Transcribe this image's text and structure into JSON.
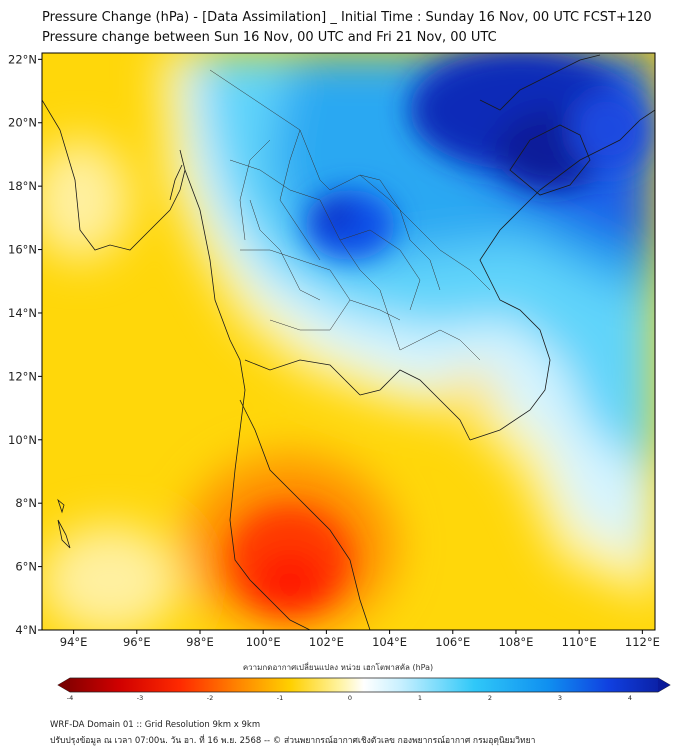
{
  "title": {
    "line1": "Pressure Change (hPa) - [Data Assimilation] _ Initial Time : Sunday 16 Nov, 00 UTC FCST+120",
    "line2": "Pressure change between Sun 16 Nov, 00 UTC and Fri 21 Nov, 00 UTC"
  },
  "map": {
    "lat_labels": [
      "22°N",
      "20°N",
      "18°N",
      "16°N",
      "14°N",
      "12°N",
      "10°N",
      "8°N",
      "6°N",
      "4°N"
    ],
    "lon_labels": [
      "94°E",
      "96°E",
      "98°E",
      "100°E",
      "102°E",
      "104°E",
      "106°E",
      "108°E",
      "110°E",
      "112°E"
    ],
    "lat_range": [
      4,
      22.2
    ],
    "lon_range": [
      93,
      112.4
    ],
    "pressure_maxima": [
      {
        "name": "fall-center-gulf",
        "lat": 6.0,
        "lon": 100.8,
        "value": -3.5
      },
      {
        "name": "rise-center-china",
        "lat": 20.0,
        "lon": 109.0,
        "value": 3.5
      },
      {
        "name": "rise-center-laos",
        "lat": 17.0,
        "lon": 103.0,
        "value": 3.0
      }
    ]
  },
  "colorbar": {
    "label": "ความกดอากาศเปลี่ยนแปลง หน่วย เฮกโตพาสคัล (hPa)",
    "ticks": [
      "-4",
      "-3",
      "-2",
      "-1",
      "0",
      "1",
      "2",
      "3",
      "4"
    ],
    "range": [
      -4,
      4
    ]
  },
  "footer": {
    "line1": "WRF-DA Domain 01 :: Grid Resolution 9km x 9km",
    "line2": "ปรับปรุงข้อมูล ณ เวลา 07:00น. วัน อา. ที่ 16 พ.ย. 2568 -- © ส่วนพยากรณ์อากาศเชิงตัวเลข กองพยากรณ์อากาศ กรมอุตุนิยมวิทยา"
  },
  "colors": {
    "deep_red": "#7a0000",
    "red": "#ff2a00",
    "orange": "#ff9a00",
    "yellow": "#ffd400",
    "pale_yellow": "#fff3a0",
    "white": "#ffffff",
    "pale_blue": "#c8f0ff",
    "cyan": "#30c8f8",
    "blue": "#1060f0",
    "deep_blue": "#0a1a9a"
  }
}
